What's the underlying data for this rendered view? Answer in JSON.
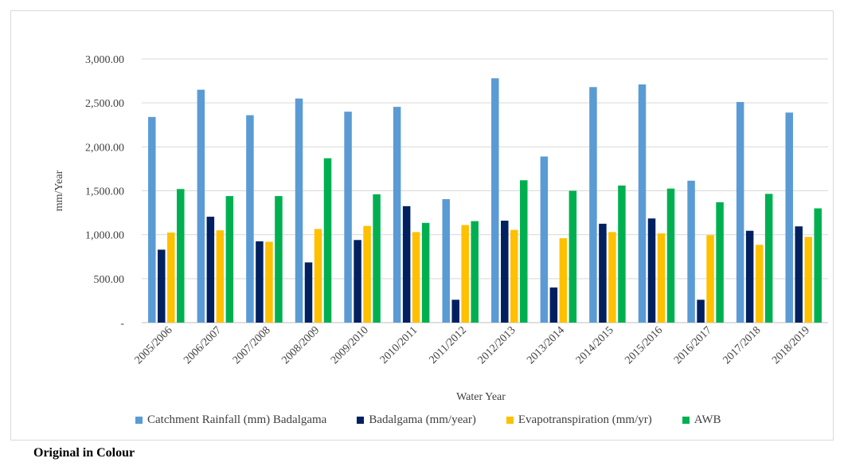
{
  "caption": "Original in Colour",
  "chart_data": {
    "type": "bar",
    "title": "",
    "xlabel": "Water Year",
    "ylabel": "mm/Year",
    "ylim": [
      0,
      3000
    ],
    "y_ticks": [
      0,
      500,
      1000,
      1500,
      2000,
      2500,
      3000
    ],
    "y_tick_labels": [
      "-",
      "500.00",
      "1,000.00",
      "1,500.00",
      "2,000.00",
      "2,500.00",
      "3,000.00"
    ],
    "grid": true,
    "legend_position": "bottom",
    "categories": [
      "2005/2006",
      "2006/2007",
      "2007/2008",
      "2008/2009",
      "2009/2010",
      "2010/2011",
      "2011/2012",
      "2012/2013",
      "2013/2014",
      "2014/2015",
      "2015/2016",
      "2016/2017",
      "2017/2018",
      "2018/2019"
    ],
    "series": [
      {
        "name": "Catchment Rainfall (mm) Badalgama",
        "color": "#5b9bd5",
        "values": [
          2340,
          2650,
          2360,
          2550,
          2400,
          2455,
          1405,
          2780,
          1890,
          2680,
          2710,
          1615,
          2510,
          2390
        ]
      },
      {
        "name": "Badalgama (mm/year)",
        "color": "#002060",
        "values": [
          830,
          1205,
          925,
          685,
          940,
          1325,
          260,
          1160,
          400,
          1125,
          1185,
          260,
          1045,
          1095
        ]
      },
      {
        "name": "Evapotranspiration (mm/yr)",
        "color": "#ffc000",
        "values": [
          1025,
          1050,
          920,
          1065,
          1100,
          1030,
          1110,
          1055,
          960,
          1030,
          1015,
          995,
          885,
          975
        ]
      },
      {
        "name": "AWB",
        "color": "#00b050",
        "values": [
          1520,
          1440,
          1440,
          1870,
          1460,
          1135,
          1155,
          1620,
          1500,
          1560,
          1525,
          1370,
          1465,
          1300
        ]
      }
    ]
  }
}
